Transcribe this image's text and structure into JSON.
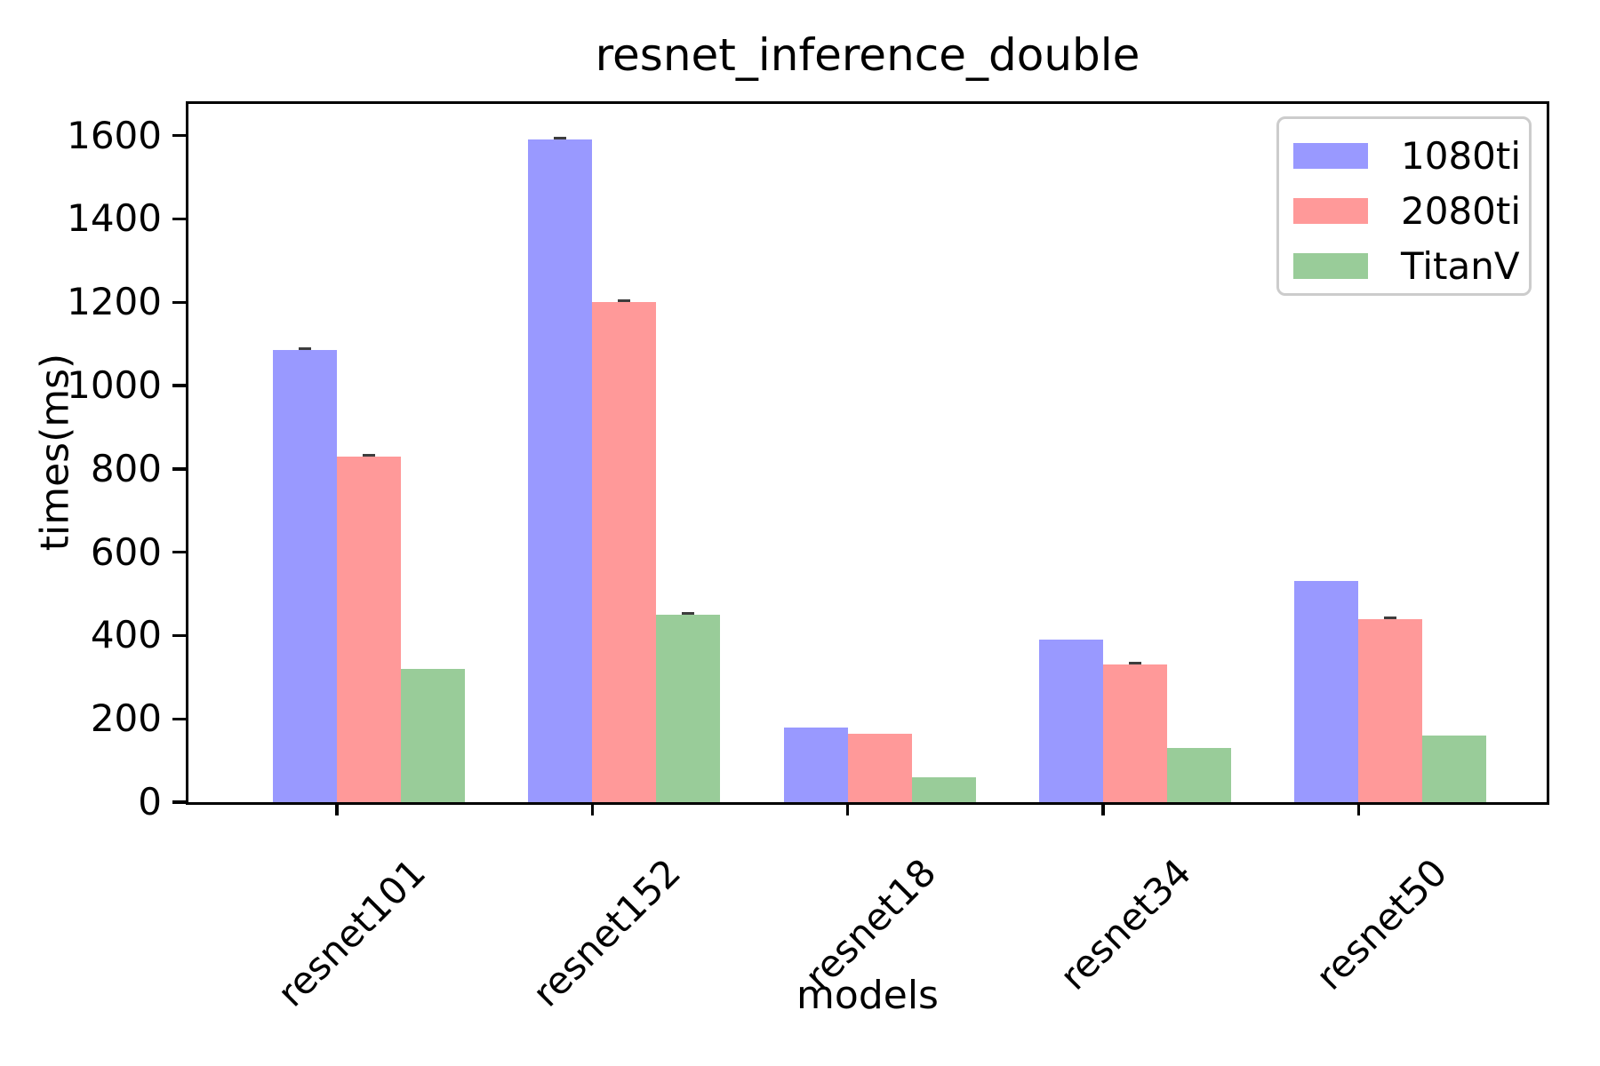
{
  "chart_data": {
    "type": "bar",
    "title": "resnet_inference_double",
    "xlabel": "models",
    "ylabel": "times(ms)",
    "categories": [
      "resnet101",
      "resnet152",
      "resnet18",
      "resnet34",
      "resnet50"
    ],
    "series": [
      {
        "name": "1080ti",
        "color": "#9999ff",
        "values": [
          1085,
          1590,
          180,
          390,
          530
        ],
        "error_caps": [
          true,
          true,
          false,
          false,
          false
        ]
      },
      {
        "name": "2080ti",
        "color": "#ff9999",
        "values": [
          830,
          1200,
          165,
          330,
          440
        ],
        "error_caps": [
          true,
          true,
          false,
          true,
          true
        ]
      },
      {
        "name": "TitanV",
        "color": "#99cc99",
        "values": [
          320,
          450,
          60,
          130,
          160
        ],
        "error_caps": [
          false,
          true,
          false,
          false,
          false
        ]
      }
    ],
    "ylim": [
      0,
      1676
    ],
    "yticks": [
      0,
      200,
      400,
      600,
      800,
      1000,
      1200,
      1400,
      1600
    ],
    "xtick_rotation_deg": 45,
    "legend_position": "upper right",
    "grid": false,
    "axis_color": "#000000",
    "background_color": "#ffffff"
  }
}
